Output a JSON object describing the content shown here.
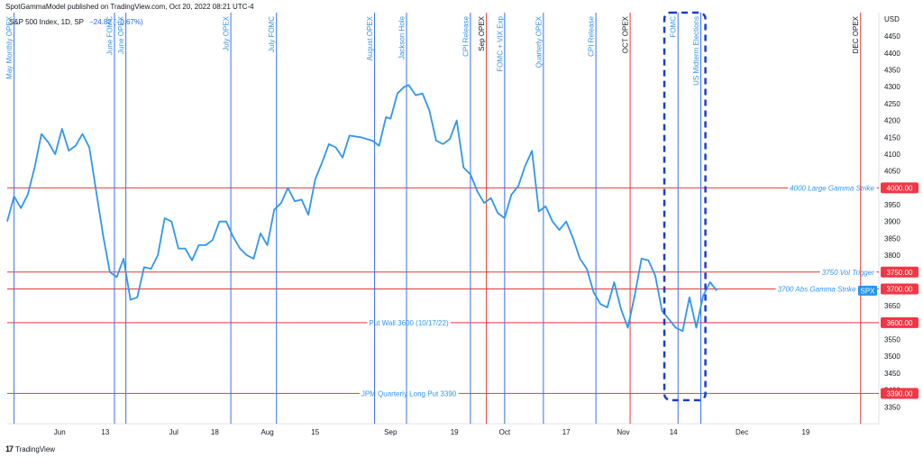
{
  "header": {
    "published": "SpotGammaModel published on TradingView.com, Oct 20, 2022 08:21 UTC-4",
    "symbol": "S&P 500 Index, 1D, SP",
    "change": "−24.82 (−0.67%)",
    "tradingview": "TradingView"
  },
  "colors": {
    "price_line": "#2f96ee",
    "event_line": "#3b6ef5",
    "opex_line": "#e53935",
    "level_line": "#e53935",
    "label_blue": "#2f96ee",
    "highlight_box": "#1a3bd6",
    "badge_red": "#f23645",
    "badge_blue": "#2196f3"
  },
  "chart_data": {
    "type": "line",
    "title": "S&P 500 Index, 1D, SP",
    "ylabel": "USD",
    "ylim": [
      3300,
      4520
    ],
    "x_axis": {
      "labels": [
        {
          "day": 23,
          "text": "Jun"
        },
        {
          "day": 43,
          "text": "13"
        },
        {
          "day": 73,
          "text": "Jul"
        },
        {
          "day": 91,
          "text": "18"
        },
        {
          "day": 114,
          "text": "Aug"
        },
        {
          "day": 135,
          "text": "15"
        },
        {
          "day": 168,
          "text": "Sep"
        },
        {
          "day": 196,
          "text": "19"
        },
        {
          "day": 218,
          "text": "Oct"
        },
        {
          "day": 245,
          "text": "17"
        },
        {
          "day": 270,
          "text": "Nov"
        },
        {
          "day": 292,
          "text": "14"
        },
        {
          "day": 322,
          "text": "Dec"
        },
        {
          "day": 350,
          "text": "19"
        }
      ]
    },
    "y_ticks": [
      3350,
      3400,
      3450,
      3500,
      3550,
      3600,
      3650,
      3700,
      3750,
      3800,
      3850,
      3900,
      3950,
      4000,
      4050,
      4100,
      4150,
      4200,
      4250,
      4300,
      4350,
      4400,
      4450
    ],
    "series": [
      {
        "name": "SPX",
        "points": [
          [
            0,
            3900
          ],
          [
            3,
            3975
          ],
          [
            6,
            3940
          ],
          [
            9,
            3980
          ],
          [
            12,
            4060
          ],
          [
            15,
            4160
          ],
          [
            18,
            4135
          ],
          [
            21,
            4100
          ],
          [
            24,
            4175
          ],
          [
            27,
            4110
          ],
          [
            30,
            4125
          ],
          [
            33,
            4160
          ],
          [
            36,
            4120
          ],
          [
            39,
            3990
          ],
          [
            42,
            3860
          ],
          [
            45,
            3750
          ],
          [
            48,
            3735
          ],
          [
            51,
            3790
          ],
          [
            54,
            3668
          ],
          [
            57,
            3675
          ],
          [
            60,
            3765
          ],
          [
            63,
            3760
          ],
          [
            66,
            3800
          ],
          [
            69,
            3910
          ],
          [
            72,
            3900
          ],
          [
            75,
            3820
          ],
          [
            78,
            3820
          ],
          [
            81,
            3785
          ],
          [
            84,
            3830
          ],
          [
            87,
            3830
          ],
          [
            90,
            3845
          ],
          [
            93,
            3900
          ],
          [
            96,
            3900
          ],
          [
            99,
            3855
          ],
          [
            102,
            3820
          ],
          [
            105,
            3800
          ],
          [
            108,
            3790
          ],
          [
            111,
            3865
          ],
          [
            114,
            3830
          ],
          [
            117,
            3935
          ],
          [
            120,
            3955
          ],
          [
            123,
            4000
          ],
          [
            126,
            3960
          ],
          [
            129,
            3965
          ],
          [
            132,
            3920
          ],
          [
            135,
            4025
          ],
          [
            138,
            4075
          ],
          [
            141,
            4130
          ],
          [
            144,
            4120
          ],
          [
            147,
            4090
          ],
          [
            150,
            4155
          ],
          [
            155,
            4150
          ],
          [
            160,
            4140
          ],
          [
            163,
            4125
          ],
          [
            166,
            4210
          ],
          [
            168,
            4205
          ],
          [
            171,
            4280
          ],
          [
            174,
            4300
          ],
          [
            176,
            4305
          ],
          [
            179,
            4275
          ],
          [
            182,
            4280
          ],
          [
            185,
            4230
          ],
          [
            188,
            4140
          ],
          [
            191,
            4130
          ],
          [
            194,
            4145
          ],
          [
            197,
            4200
          ],
          [
            200,
            4060
          ],
          [
            203,
            4040
          ],
          [
            206,
            3990
          ],
          [
            209,
            3955
          ],
          [
            212,
            3970
          ],
          [
            215,
            3925
          ],
          [
            218,
            3910
          ],
          [
            221,
            3980
          ],
          [
            224,
            4005
          ],
          [
            227,
            4065
          ],
          [
            230,
            4110
          ],
          [
            233,
            3930
          ],
          [
            236,
            3945
          ],
          [
            239,
            3900
          ],
          [
            242,
            3875
          ],
          [
            245,
            3900
          ],
          [
            248,
            3850
          ],
          [
            251,
            3790
          ],
          [
            254,
            3760
          ],
          [
            257,
            3690
          ],
          [
            260,
            3655
          ],
          [
            263,
            3645
          ],
          [
            266,
            3720
          ],
          [
            269,
            3640
          ],
          [
            272,
            3585
          ],
          [
            275,
            3680
          ],
          [
            278,
            3790
          ],
          [
            281,
            3785
          ],
          [
            284,
            3740
          ],
          [
            287,
            3635
          ],
          [
            290,
            3610
          ],
          [
            293,
            3585
          ],
          [
            296,
            3575
          ],
          [
            299,
            3675
          ],
          [
            302,
            3585
          ],
          [
            305,
            3680
          ],
          [
            308,
            3720
          ],
          [
            311,
            3695
          ]
        ]
      }
    ],
    "price_label": {
      "value": 3695,
      "text": "SPX"
    },
    "vertical_events": [
      {
        "day": 3,
        "label": "May Monthly OPEX",
        "kind": "event"
      },
      {
        "day": 47,
        "label": "June FOMC",
        "kind": "event"
      },
      {
        "day": 52,
        "label": "June OPEX",
        "kind": "event"
      },
      {
        "day": 98,
        "label": "July OPEX",
        "kind": "event"
      },
      {
        "day": 118,
        "label": "July FOMC",
        "kind": "event"
      },
      {
        "day": 161,
        "label": "August OPEX",
        "kind": "event"
      },
      {
        "day": 175,
        "label": "Jackson Hole",
        "kind": "event"
      },
      {
        "day": 203,
        "label": "CPI Release",
        "kind": "event"
      },
      {
        "day": 210,
        "label": "Sep OPEX",
        "kind": "opex"
      },
      {
        "day": 218,
        "label": "FOMC + VIX Exp",
        "kind": "event"
      },
      {
        "day": 235,
        "label": "Quarterly OPEX",
        "kind": "event"
      },
      {
        "day": 258,
        "label": "CPI Release",
        "kind": "event"
      },
      {
        "day": 273,
        "label": "OCT OPEX",
        "kind": "opex"
      },
      {
        "day": 294,
        "label": "FOMC",
        "kind": "event"
      },
      {
        "day": 304,
        "label": "US Midterm Elections",
        "kind": "event"
      },
      {
        "day": 374,
        "label": "DEC OPEX",
        "kind": "opex"
      }
    ],
    "levels": [
      {
        "value": 4000,
        "label": "4000 Large Gamma Strike",
        "badge": "4000.00",
        "label_style": "italic",
        "label_anchor": "right"
      },
      {
        "value": 3750,
        "label": "3750 Vol Trigger",
        "badge": "3750.00",
        "label_style": "italic",
        "label_anchor": "right"
      },
      {
        "value": 3700,
        "label": "3700 Abs Gamma Strike (10/1",
        "badge": "3700.00",
        "label_style": "italic",
        "label_anchor": "right"
      },
      {
        "value": 3600,
        "label": "Put Wall 3600 (10/17/22)",
        "badge": "3600.00",
        "label_style": "normal",
        "label_anchor": "middle"
      },
      {
        "value": 3390,
        "label": "JPM Quarterly Long Put 3390",
        "badge": "3390.00",
        "label_style": "normal",
        "label_anchor": "middle"
      }
    ],
    "highlight_box": {
      "day_start": 288,
      "day_end": 306,
      "value_top": 4520,
      "value_bottom": 3370
    }
  }
}
